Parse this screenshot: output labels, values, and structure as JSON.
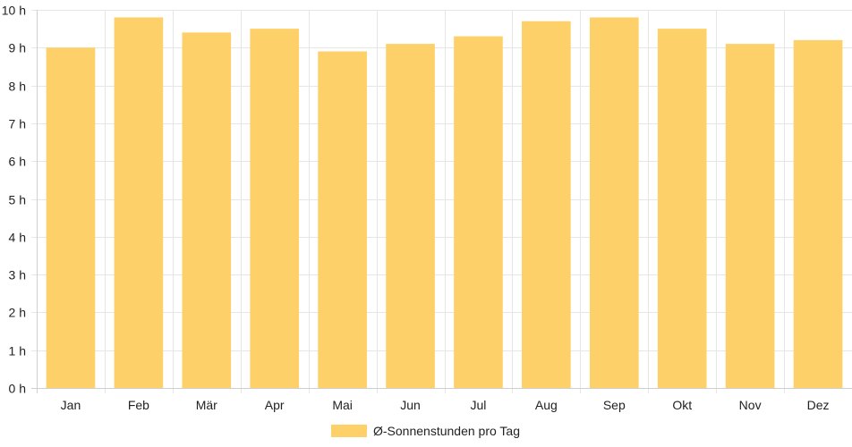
{
  "chart_data": {
    "type": "bar",
    "categories": [
      "Jan",
      "Feb",
      "Mär",
      "Apr",
      "Mai",
      "Jun",
      "Jul",
      "Aug",
      "Sep",
      "Okt",
      "Nov",
      "Dez"
    ],
    "series": [
      {
        "name": "Ø-Sonnenstunden pro Tag",
        "values": [
          9.0,
          9.8,
          9.4,
          9.5,
          8.9,
          9.1,
          9.3,
          9.7,
          9.8,
          9.5,
          9.1,
          9.2
        ],
        "color": "#fdd06a"
      }
    ],
    "y_ticks": [
      "0 h",
      "1 h",
      "2 h",
      "3 h",
      "4 h",
      "5 h",
      "6 h",
      "7 h",
      "8 h",
      "9 h",
      "10 h"
    ],
    "ylim": [
      0,
      10
    ],
    "grid": true,
    "legend_position": "bottom-center"
  }
}
